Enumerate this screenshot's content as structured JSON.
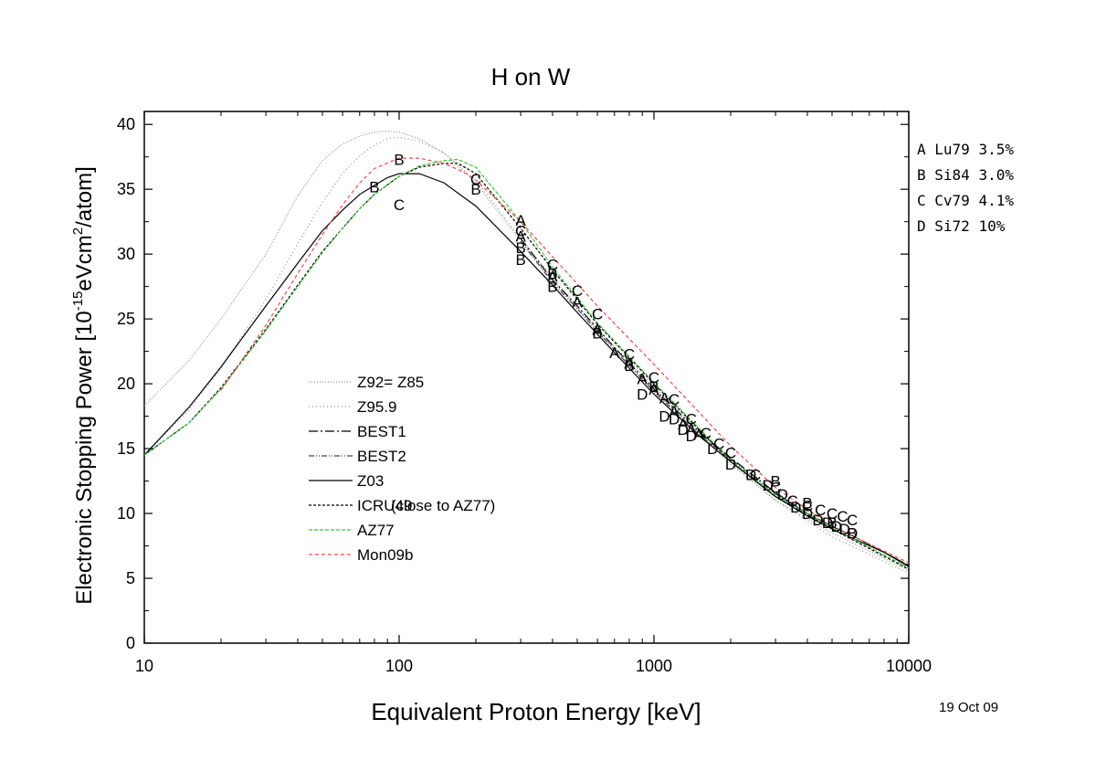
{
  "chart_data": {
    "type": "line",
    "title": "H on W",
    "xlabel": "Equivalent Proton Energy [keV]",
    "ylabel_parts": {
      "before": "Electronic Stopping Power [10",
      "sup1": "-15",
      "middle": "eVcm",
      "sup2": "2",
      "after": "/atom]"
    },
    "x_scale": "log",
    "xlim": [
      10,
      10000
    ],
    "ylim": [
      0,
      41
    ],
    "x_ticks": [
      "10",
      "100",
      "1000",
      "10000"
    ],
    "y_ticks": [
      "0",
      "5",
      "10",
      "15",
      "20",
      "25",
      "30",
      "35",
      "40"
    ],
    "legend_position": "lower-left",
    "series": [
      {
        "name": "Z92= Z85",
        "color": "#909090",
        "dash": "1,2",
        "x": [
          10,
          15,
          20,
          30,
          40,
          50,
          60,
          70,
          80,
          90,
          100,
          120,
          150,
          200,
          300,
          400,
          600,
          1000,
          2000,
          3000,
          5000,
          10000
        ],
        "y": [
          18.3,
          21.8,
          25.0,
          30.0,
          34.5,
          37.2,
          38.5,
          39.1,
          39.4,
          39.5,
          39.4,
          38.9,
          37.8,
          35.5,
          31.0,
          28.0,
          24.0,
          19.5,
          13.8,
          11.0,
          8.5,
          5.6
        ]
      },
      {
        "name": "Z95.9",
        "color": "#909090",
        "dash": "1,3",
        "x": [
          10,
          15,
          20,
          30,
          40,
          50,
          60,
          70,
          80,
          90,
          100,
          120,
          150,
          200,
          300,
          400,
          600,
          1000,
          2000,
          3000,
          5000,
          10000
        ],
        "y": [
          14.5,
          18.0,
          21.2,
          26.5,
          30.8,
          34.0,
          36.2,
          37.6,
          38.4,
          38.9,
          39.0,
          38.7,
          37.8,
          35.7,
          31.2,
          28.2,
          24.2,
          19.8,
          14.0,
          11.0,
          8.2,
          5.4
        ]
      },
      {
        "name": "BEST1",
        "color": "#000000",
        "dash": "10,3,2,3",
        "x": [
          300,
          400,
          500,
          700,
          1000,
          1500,
          2000,
          3000,
          4000,
          5000,
          6000,
          8000,
          10000
        ],
        "y": [
          31.2,
          28.0,
          26.0,
          22.8,
          19.6,
          16.3,
          14.3,
          11.6,
          10.0,
          9.0,
          8.3,
          7.0,
          6.0
        ]
      },
      {
        "name": "BEST2",
        "color": "#444444",
        "dash": "6,2,1,2,1,2",
        "x": [
          300,
          400,
          500,
          700,
          1000,
          1500,
          2000,
          3000,
          4000,
          5000,
          6000,
          8000,
          10000
        ],
        "y": [
          31.0,
          27.8,
          25.8,
          22.6,
          19.4,
          16.1,
          14.2,
          11.5,
          10.0,
          9.0,
          8.3,
          7.0,
          6.0
        ]
      },
      {
        "name": "Z03",
        "color": "#000000",
        "dash": "",
        "x": [
          10,
          15,
          20,
          30,
          40,
          50,
          60,
          70,
          80,
          90,
          100,
          120,
          150,
          200,
          300,
          400,
          500,
          700,
          1000,
          1500,
          2000,
          3000,
          4000,
          5000,
          6000,
          8000,
          10000
        ],
        "y": [
          14.5,
          18.2,
          21.3,
          26.0,
          29.3,
          31.8,
          33.4,
          34.6,
          35.3,
          35.9,
          36.2,
          36.2,
          35.5,
          33.7,
          30.2,
          27.6,
          25.5,
          22.4,
          19.2,
          16.0,
          14.0,
          11.3,
          9.8,
          8.8,
          8.1,
          7.0,
          5.9
        ]
      },
      {
        "name": "ICRU49",
        "note": "(close to AZ77)",
        "color": "#000000",
        "dash": "3,2",
        "x": [
          10,
          15,
          20,
          30,
          40,
          50,
          60,
          70,
          80,
          100,
          120,
          150,
          170,
          200,
          300,
          400,
          600,
          1000,
          2000,
          3000,
          5000,
          10000
        ],
        "y": [
          14.5,
          17.0,
          19.7,
          24.2,
          27.6,
          30.2,
          32.0,
          33.5,
          34.6,
          36.0,
          36.7,
          37.0,
          37.0,
          36.2,
          32.0,
          28.8,
          24.6,
          20.0,
          14.0,
          11.3,
          8.8,
          5.7
        ]
      },
      {
        "name": "AZ77",
        "color": "#33cc33",
        "dash": "4,2",
        "x": [
          10,
          15,
          20,
          30,
          40,
          50,
          60,
          70,
          80,
          100,
          120,
          150,
          170,
          200,
          300,
          400,
          600,
          1000,
          2000,
          3000,
          5000,
          10000
        ],
        "y": [
          14.5,
          17.0,
          19.6,
          24.1,
          27.5,
          30.1,
          32.0,
          33.5,
          34.6,
          36.0,
          36.8,
          37.2,
          37.3,
          36.7,
          32.5,
          29.0,
          24.7,
          20.1,
          14.1,
          11.4,
          8.9,
          5.8
        ]
      },
      {
        "name": "Mon09b",
        "color": "#ff4444",
        "dash": "4,3",
        "x": [
          20,
          30,
          40,
          50,
          60,
          70,
          80,
          100,
          120,
          150,
          180,
          200,
          300,
          400,
          600,
          1000,
          2000,
          3000,
          5000,
          10000
        ],
        "y": [
          19.5,
          24.5,
          28.5,
          31.5,
          33.8,
          35.5,
          36.6,
          37.4,
          37.4,
          37.0,
          36.3,
          35.7,
          32.5,
          29.8,
          26.0,
          21.5,
          15.2,
          12.0,
          9.0,
          6.2
        ]
      }
    ],
    "data_points": {
      "A": {
        "label": "Lu79 3.5%",
        "x": [
          300,
          300,
          400,
          500,
          600,
          700,
          800,
          900,
          1000,
          1100,
          1200,
          1300,
          1400,
          1500
        ],
        "y": [
          32.6,
          31.4,
          28.3,
          26.3,
          24.2,
          22.4,
          21.6,
          20.4,
          19.6,
          18.9,
          17.9,
          16.9,
          16.5,
          16.1
        ]
      },
      "B": {
        "label": "Si84 3.0%",
        "x": [
          80,
          100,
          200,
          300,
          300,
          400,
          400,
          600,
          800,
          1000,
          3000,
          4000,
          5000,
          6000
        ],
        "y": [
          35.2,
          37.3,
          35.0,
          30.5,
          29.6,
          28.5,
          27.5,
          23.9,
          21.4,
          19.8,
          12.5,
          10.8,
          9.3,
          8.5
        ]
      },
      "C": {
        "label": "Cv79 4.1%",
        "x": [
          100,
          200,
          300,
          400,
          500,
          600,
          800,
          1000,
          1200,
          1400,
          1600,
          1800,
          2000,
          2500,
          3000,
          3500,
          4000,
          4500,
          5000,
          5500,
          6000
        ],
        "y": [
          33.8,
          35.8,
          31.8,
          29.2,
          27.2,
          25.4,
          22.3,
          20.5,
          18.8,
          17.3,
          16.2,
          15.4,
          14.7,
          13.0,
          12.0,
          11.0,
          10.6,
          10.3,
          10.0,
          9.8,
          9.5
        ]
      },
      "D": {
        "label": "Si72 10%",
        "x": [
          900,
          1100,
          1200,
          1300,
          1400,
          1700,
          2000,
          2400,
          2800,
          3200,
          3600,
          4000,
          4400,
          4800,
          5200,
          5600,
          6000
        ],
        "y": [
          19.2,
          17.5,
          17.3,
          16.5,
          16.0,
          15.0,
          13.8,
          13.0,
          12.2,
          11.5,
          10.5,
          10.0,
          9.5,
          9.3,
          9.0,
          8.8,
          8.5
        ]
      }
    }
  },
  "reference_legend": [
    {
      "letter": "A",
      "text": "Lu79 3.5%"
    },
    {
      "letter": "B",
      "text": "Si84 3.0%"
    },
    {
      "letter": "C",
      "text": "Cv79 4.1%"
    },
    {
      "letter": "D",
      "text": "Si72 10%"
    }
  ],
  "date_stamp": "19 Oct 09"
}
